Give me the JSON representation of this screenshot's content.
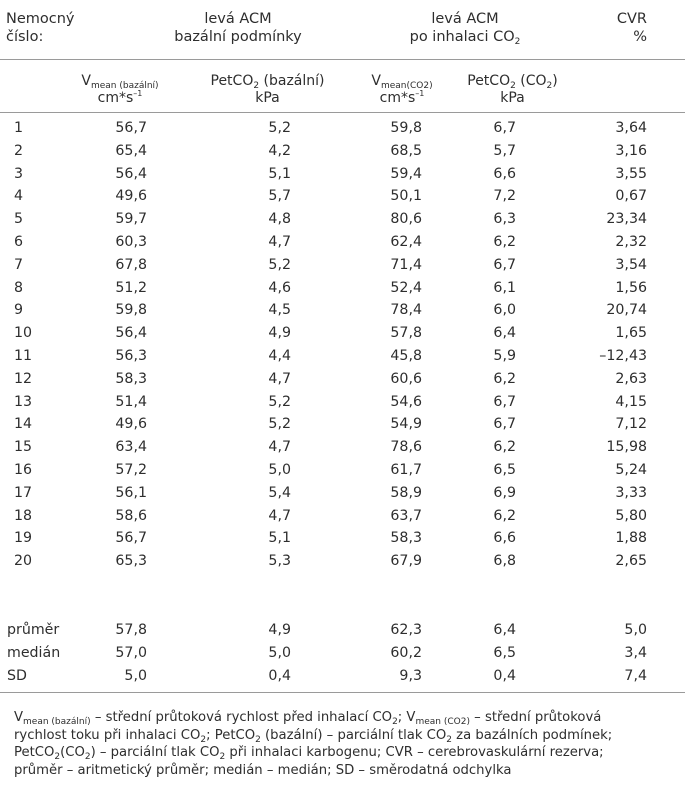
{
  "header": {
    "col1": [
      "Nemocný",
      "číslo:"
    ],
    "col2": [
      "levá ACM",
      "bazální podmínky"
    ],
    "col3_line1": "levá ACM",
    "col3_line2": "po inhalaci CO",
    "col3_line2_sub": "2",
    "col4": [
      "CVR",
      "%"
    ]
  },
  "subheader": {
    "a_main": "V",
    "a_sub": "mean (bazální)",
    "a_unit_pre": "cm*s",
    "a_unit_sup": "–1",
    "b_pre": "PetCO",
    "b_sub": "2",
    "b_post": " (bazální)",
    "b_unit": "kPa",
    "c_main": "V",
    "c_sub": "mean(CO2)",
    "c_unit_pre": "cm*s",
    "c_unit_sup": "–1",
    "d_pre": "PetCO",
    "d_sub": "2",
    "d_mid": " (CO",
    "d_sub2": "2",
    "d_post": ")",
    "d_unit": "kPa"
  },
  "rows": [
    [
      "1",
      "56,7",
      "5,2",
      "59,8",
      "6,7",
      "3,64"
    ],
    [
      "2",
      "65,4",
      "4,2",
      "68,5",
      "5,7",
      "3,16"
    ],
    [
      "3",
      "56,4",
      "5,1",
      "59,4",
      "6,6",
      "3,55"
    ],
    [
      "4",
      "49,6",
      "5,7",
      "50,1",
      "7,2",
      "0,67"
    ],
    [
      "5",
      "59,7",
      "4,8",
      "80,6",
      "6,3",
      "23,34"
    ],
    [
      "6",
      "60,3",
      "4,7",
      "62,4",
      "6,2",
      "2,32"
    ],
    [
      "7",
      "67,8",
      "5,2",
      "71,4",
      "6,7",
      "3,54"
    ],
    [
      "8",
      "51,2",
      "4,6",
      "52,4",
      "6,1",
      "1,56"
    ],
    [
      "9",
      "59,8",
      "4,5",
      "78,4",
      "6,0",
      "20,74"
    ],
    [
      "10",
      "56,4",
      "4,9",
      "57,8",
      "6,4",
      "1,65"
    ],
    [
      "11",
      "56,3",
      "4,4",
      "45,8",
      "5,9",
      "–12,43"
    ],
    [
      "12",
      "58,3",
      "4,7",
      "60,6",
      "6,2",
      "2,63"
    ],
    [
      "13",
      "51,4",
      "5,2",
      "54,6",
      "6,7",
      "4,15"
    ],
    [
      "14",
      "49,6",
      "5,2",
      "54,9",
      "6,7",
      "7,12"
    ],
    [
      "15",
      "63,4",
      "4,7",
      "78,6",
      "6,2",
      "15,98"
    ],
    [
      "16",
      "57,2",
      "5,0",
      "61,7",
      "6,5",
      "5,24"
    ],
    [
      "17",
      "56,1",
      "5,4",
      "58,9",
      "6,9",
      "3,33"
    ],
    [
      "18",
      "58,6",
      "4,7",
      "63,7",
      "6,2",
      "5,80"
    ],
    [
      "19",
      "56,7",
      "5,1",
      "58,3",
      "6,6",
      "1,88"
    ],
    [
      "20",
      "65,3",
      "5,3",
      "67,9",
      "6,8",
      "2,65"
    ]
  ],
  "stats": [
    [
      "průměr",
      "57,8",
      "4,9",
      "62,3",
      "6,4",
      "5,0"
    ],
    [
      "medián",
      "57,0",
      "5,0",
      "60,2",
      "6,5",
      "3,4"
    ],
    [
      "SD",
      "5,0",
      "0,4",
      "9,3",
      "0,4",
      "7,4"
    ]
  ],
  "footnote": {
    "l1_a": "V",
    "l1_a_sub": "mean (bazální)",
    "l1_b": " – střední průtoková rychlost před inhalací CO",
    "l1_b_sub": "2",
    "l1_c": "; V",
    "l1_c_sub": "mean (CO2)",
    "l1_d": " – střední průtoková",
    "l2_a": "rychlost toku při inhalaci CO",
    "l2_a_sub": "2",
    "l2_b": "; PetCO",
    "l2_b_sub": "2",
    "l2_c": " (bazální) – parciální tlak CO",
    "l2_c_sub": "2",
    "l2_d": " za bazálních podmínek;",
    "l3_a": "PetCO",
    "l3_a_sub": "2",
    "l3_b": "(CO",
    "l3_b_sub": "2",
    "l3_c": ") – parciální tlak CO",
    "l3_c_sub": "2",
    "l3_d": " při inhalaci karbogenu; CVR – cerebrovaskulární rezerva;",
    "l4": "průměr – aritmetický průměr; medián – medián; SD – směrodatná odchylka"
  }
}
